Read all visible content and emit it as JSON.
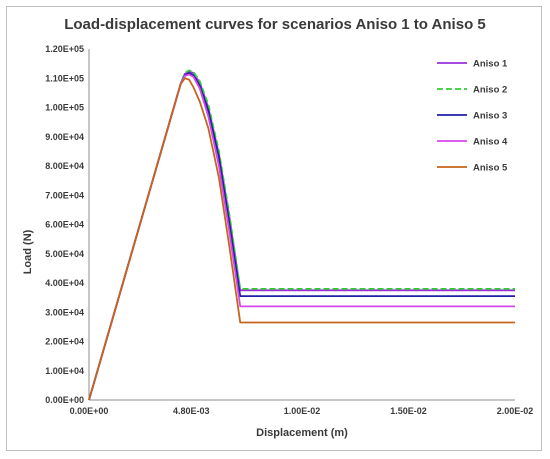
{
  "chart_data": {
    "type": "line",
    "title": "Load-displacement curves for scenarios Aniso 1 to Aniso 5",
    "xlabel": "Displacement (m)",
    "ylabel": "Load (N)",
    "xlim": [
      0,
      0.02
    ],
    "ylim": [
      0,
      120000
    ],
    "x_ticks": [
      0,
      0.0048,
      0.01,
      0.015,
      0.02
    ],
    "x_tick_labels": [
      "0.00E+00",
      "4.80E-03",
      "1.00E-02",
      "1.50E-02",
      "2.00E-02"
    ],
    "y_ticks": [
      0,
      10000,
      20000,
      30000,
      40000,
      50000,
      60000,
      70000,
      80000,
      90000,
      100000,
      110000,
      120000
    ],
    "y_tick_labels": [
      "0.00E+00",
      "1.00E+04",
      "2.00E+04",
      "3.00E+04",
      "4.00E+04",
      "5.00E+04",
      "6.00E+04",
      "7.00E+04",
      "8.00E+04",
      "9.00E+04",
      "1.00E+05",
      "1.10E+05",
      "1.20E+05"
    ],
    "grid": false,
    "legend_position": "top-right",
    "series": [
      {
        "name": "Aniso 1",
        "color": "#9b30d9",
        "dash": "solid",
        "x": [
          0,
          0.0043,
          0.0045,
          0.0047,
          0.0049,
          0.0052,
          0.0056,
          0.0061,
          0.0066,
          0.0071,
          0.02
        ],
        "y": [
          0,
          108000,
          111500,
          112300,
          111800,
          108500,
          100000,
          84000,
          62000,
          37500,
          37500
        ]
      },
      {
        "name": "Aniso 2",
        "color": "#33cc33",
        "dash": "dashed",
        "x": [
          0,
          0.0043,
          0.0045,
          0.0047,
          0.0049,
          0.0052,
          0.0056,
          0.0061,
          0.0066,
          0.0071,
          0.02
        ],
        "y": [
          0,
          108000,
          111800,
          112700,
          112200,
          109000,
          101000,
          85000,
          63000,
          38000,
          38000
        ]
      },
      {
        "name": "Aniso 3",
        "color": "#1f1fa8",
        "dash": "solid",
        "x": [
          0,
          0.0043,
          0.0045,
          0.0047,
          0.0049,
          0.0052,
          0.0056,
          0.0061,
          0.0066,
          0.0071,
          0.02
        ],
        "y": [
          0,
          108000,
          111000,
          111800,
          111000,
          107500,
          99000,
          83000,
          60000,
          35500,
          35500
        ]
      },
      {
        "name": "Aniso 4",
        "color": "#d44ae8",
        "dash": "solid",
        "x": [
          0,
          0.0043,
          0.0045,
          0.0047,
          0.0049,
          0.0052,
          0.0056,
          0.0061,
          0.0066,
          0.0071,
          0.02
        ],
        "y": [
          0,
          108000,
          110800,
          111300,
          110500,
          106500,
          97000,
          80000,
          57000,
          32000,
          32000
        ]
      },
      {
        "name": "Aniso 5",
        "color": "#c5651b",
        "dash": "solid",
        "x": [
          0,
          0.0043,
          0.0045,
          0.0047,
          0.0049,
          0.0052,
          0.0056,
          0.0061,
          0.0066,
          0.0071,
          0.02
        ],
        "y": [
          0,
          108000,
          110000,
          109500,
          107000,
          102000,
          93000,
          76000,
          52000,
          26500,
          26500
        ]
      }
    ]
  }
}
